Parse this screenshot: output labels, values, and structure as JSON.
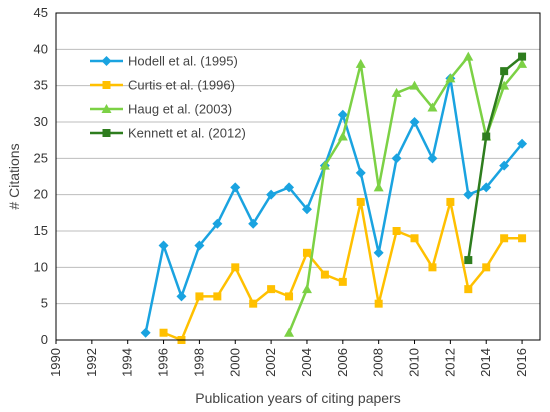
{
  "chart_data": {
    "type": "line",
    "title": "",
    "xlabel": "Publication years of citing papers",
    "ylabel": "# Citations",
    "xlim": [
      1990,
      2017
    ],
    "ylim": [
      0,
      45
    ],
    "xticks": [
      1990,
      1992,
      1994,
      1996,
      1998,
      2000,
      2002,
      2004,
      2006,
      2008,
      2010,
      2012,
      2014,
      2016
    ],
    "yticks": [
      0,
      5,
      10,
      15,
      20,
      25,
      30,
      35,
      40,
      45
    ],
    "grid": "horizontal",
    "legend": "top-left",
    "series": [
      {
        "name": "Hodell et al. (1995)",
        "color": "#1aa3e0",
        "marker": "diamond",
        "x": [
          1995,
          1996,
          1997,
          1998,
          1999,
          2000,
          2001,
          2002,
          2003,
          2004,
          2005,
          2006,
          2007,
          2008,
          2009,
          2010,
          2011,
          2012,
          2013,
          2014,
          2015,
          2016
        ],
        "y": [
          1,
          13,
          6,
          13,
          16,
          21,
          16,
          20,
          21,
          18,
          24,
          31,
          23,
          12,
          25,
          30,
          25,
          36,
          20,
          21,
          24,
          27
        ]
      },
      {
        "name": "Curtis et al. (1996)",
        "color": "#ffc000",
        "marker": "square",
        "x": [
          1996,
          1997,
          1998,
          1999,
          2000,
          2001,
          2002,
          2003,
          2004,
          2005,
          2006,
          2007,
          2008,
          2009,
          2010,
          2011,
          2012,
          2013,
          2014,
          2015,
          2016
        ],
        "y": [
          1,
          0,
          6,
          6,
          10,
          5,
          7,
          6,
          12,
          9,
          8,
          19,
          5,
          15,
          14,
          10,
          19,
          7,
          10,
          14,
          14
        ]
      },
      {
        "name": "Haug et al. (2003)",
        "color": "#7cd145",
        "marker": "triangle",
        "x": [
          2003,
          2004,
          2005,
          2006,
          2007,
          2008,
          2009,
          2010,
          2011,
          2012,
          2013,
          2014,
          2015,
          2016
        ],
        "y": [
          1,
          7,
          24,
          28,
          38,
          21,
          34,
          35,
          32,
          36,
          39,
          28,
          35,
          38
        ]
      },
      {
        "name": "Kennett et al. (2012)",
        "color": "#2e7d1e",
        "marker": "square",
        "x": [
          2013,
          2014,
          2015,
          2016
        ],
        "y": [
          11,
          28,
          37,
          39
        ]
      }
    ]
  }
}
